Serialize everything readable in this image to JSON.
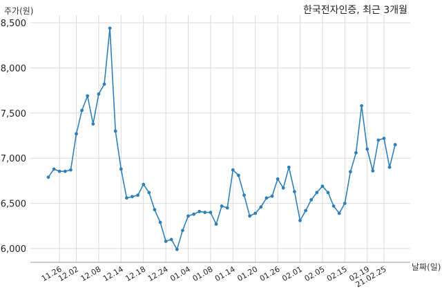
{
  "chart_data": {
    "type": "line",
    "title": "한국전자인증, 최근 3개월",
    "ylabel": "주가(원)",
    "xlabel": "날짜(일)",
    "ylim": [
      5850,
      8550
    ],
    "yticks": [
      6000,
      6500,
      7000,
      7500,
      8000,
      8500
    ],
    "ytick_labels": [
      "6,000",
      "6,500",
      "7,000",
      "7,500",
      "8,000",
      "8,500"
    ],
    "grid": true,
    "line_color": "#2e7fb8",
    "x_tick_labels": [
      {
        "index": 2,
        "label": "11.26"
      },
      {
        "index": 5,
        "label": "12.02"
      },
      {
        "index": 9,
        "label": "12.08"
      },
      {
        "index": 13,
        "label": "12.14"
      },
      {
        "index": 17,
        "label": "12.18"
      },
      {
        "index": 21,
        "label": "12.24"
      },
      {
        "index": 25,
        "label": "01.04"
      },
      {
        "index": 29,
        "label": "01.08"
      },
      {
        "index": 33,
        "label": "01.14"
      },
      {
        "index": 37,
        "label": "01.20"
      },
      {
        "index": 41,
        "label": "01.26"
      },
      {
        "index": 45,
        "label": "02.01"
      },
      {
        "index": 49,
        "label": "02.05"
      },
      {
        "index": 53,
        "label": "02.15"
      },
      {
        "index": 57,
        "label": "02.19"
      },
      {
        "index": 60,
        "label": "21.02.25"
      }
    ],
    "series": [
      {
        "values": [
          6790,
          6880,
          6855,
          6855,
          6870,
          7270,
          7530,
          7690,
          7380,
          7710,
          7820,
          8440,
          7300,
          6880,
          6560,
          6575,
          6590,
          6710,
          6620,
          6430,
          6290,
          6080,
          6100,
          5990,
          6200,
          6360,
          6380,
          6410,
          6400,
          6400,
          6270,
          6470,
          6450,
          6870,
          6810,
          6590,
          6360,
          6390,
          6460,
          6560,
          6580,
          6770,
          6670,
          6900,
          6630,
          6310,
          6420,
          6540,
          6620,
          6690,
          6620,
          6470,
          6390,
          6500,
          6850,
          7060,
          7580,
          7100,
          6860,
          7200,
          7220,
          6900,
          7150
        ]
      }
    ]
  }
}
